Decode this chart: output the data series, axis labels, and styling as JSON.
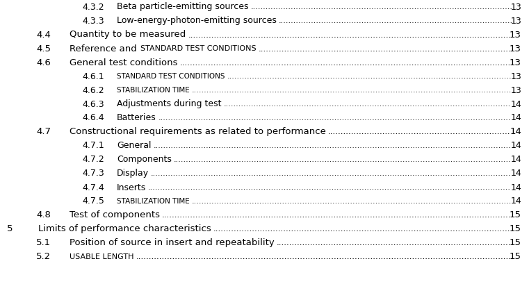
{
  "background_color": "#ffffff",
  "text_color": "#000000",
  "entries": [
    {
      "level": 3,
      "number": "4.3.2",
      "text": "Beta particle-emitting sources",
      "sc": false,
      "page": "13"
    },
    {
      "level": 3,
      "number": "4.3.3",
      "text": "Low-energy-photon-emitting sources",
      "sc": false,
      "page": "13"
    },
    {
      "level": 2,
      "number": "4.4",
      "text": "Quantity to be measured",
      "sc": false,
      "page": "13"
    },
    {
      "level": 2,
      "number": "4.5",
      "text": "Reference and ",
      "text2": "standard test conditions",
      "sc": true,
      "page": "13"
    },
    {
      "level": 2,
      "number": "4.6",
      "text": "General test conditions",
      "sc": false,
      "page": "13"
    },
    {
      "level": 3,
      "number": "4.6.1",
      "text": "Standard test conditions",
      "sc": true,
      "page": "13"
    },
    {
      "level": 3,
      "number": "4.6.2",
      "text": "Stabilization time",
      "sc": true,
      "page": "13"
    },
    {
      "level": 3,
      "number": "4.6.3",
      "text": "Adjustments during test",
      "sc": false,
      "page": "14"
    },
    {
      "level": 3,
      "number": "4.6.4",
      "text": "Batteries",
      "sc": false,
      "page": "14"
    },
    {
      "level": 2,
      "number": "4.7",
      "text": "Constructional requirements as related to performance",
      "sc": false,
      "page": "14"
    },
    {
      "level": 3,
      "number": "4.7.1",
      "text": "General",
      "sc": false,
      "page": "14"
    },
    {
      "level": 3,
      "number": "4.7.2",
      "text": "Components",
      "sc": false,
      "page": "14"
    },
    {
      "level": 3,
      "number": "4.7.3",
      "text": "Display",
      "sc": false,
      "page": "14"
    },
    {
      "level": 3,
      "number": "4.7.4",
      "text": "Inserts",
      "sc": false,
      "page": "14"
    },
    {
      "level": 3,
      "number": "4.7.5",
      "text": "Stabilization time",
      "sc": true,
      "page": "14"
    },
    {
      "level": 2,
      "number": "4.8",
      "text": "Test of components",
      "sc": false,
      "page": "15"
    },
    {
      "level": 1,
      "number": "5",
      "text": "Limits of performance characteristics",
      "sc": false,
      "page": "15"
    },
    {
      "level": 2,
      "number": "5.1",
      "text": "Position of source in insert and repeatability",
      "sc": false,
      "page": "15"
    },
    {
      "level": 2,
      "number": "5.2",
      "text": "Usable length",
      "sc": true,
      "page": "15"
    }
  ]
}
